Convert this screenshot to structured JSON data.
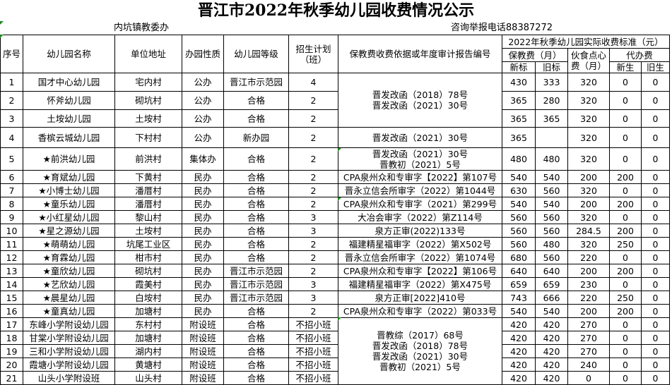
{
  "title": "晋江市2022年秋季幼儿园收费情况公示",
  "subheader": {
    "org": "内坑镇教委办",
    "hotline": "咨询举报电话88387272"
  },
  "headers": {
    "seq": "序号",
    "name": "幼儿园名称",
    "address": "单位地址",
    "nature": "办园性质",
    "grade": "幼儿园等级",
    "plan": "招生计划（班）",
    "basis": "保教费收费依据或年度审计报告编号",
    "standard": "2022年秋季幼儿园实际收费标准（元）",
    "tuition": "保教费（月）",
    "meal": "伙食点心费（月）",
    "agency": "代办费",
    "new_std": "新标",
    "old_std": "旧标",
    "new_stu": "新生",
    "old_stu": "旧生"
  },
  "basis_groups": [
    {
      "rows": [
        1,
        2,
        3
      ],
      "text": "晋发改函（2018）78号\n晋发改函（2021）30号"
    },
    {
      "rows": [
        17,
        18,
        19,
        20,
        21
      ],
      "text": "晋教综（2017）68号\n晋发改函（2018）78号\n晋发改函（2021）30号\n晋教初（2021）5号"
    }
  ],
  "rows": [
    {
      "seq": "1",
      "name": "国才中心幼儿园",
      "address": "宅内村",
      "nature": "公办",
      "grade": "晋江市示范园",
      "plan": "4",
      "basis": null,
      "new_std": "430",
      "old_std": "333",
      "meal": "320",
      "new_stu": "0",
      "old_stu": "0"
    },
    {
      "seq": "2",
      "name": "怀斧幼儿园",
      "address": "砌坑村",
      "nature": "公办",
      "grade": "合格",
      "plan": "2",
      "basis": null,
      "new_std": "365",
      "old_std": "280",
      "meal": "320",
      "new_stu": "0",
      "old_stu": "0"
    },
    {
      "seq": "3",
      "name": "土垵幼儿园",
      "address": "土垵村",
      "nature": "公办",
      "grade": "合格",
      "plan": "2",
      "basis": null,
      "new_std": "365",
      "old_std": "365",
      "meal": "320",
      "new_stu": "0",
      "old_stu": "0"
    },
    {
      "seq": "4",
      "name": "香槟云城幼儿园",
      "address": "下村村",
      "nature": "公办",
      "grade": "新办园",
      "plan": "2",
      "basis": "晋发改函（2021）30号",
      "new_std": "365",
      "old_std": "",
      "meal": "320",
      "new_stu": "0",
      "old_stu": "0"
    },
    {
      "seq": "5",
      "name": "★前洪幼儿园",
      "address": "前洪村",
      "nature": "集体办",
      "grade": "合格",
      "plan": "2",
      "basis": "晋发改函（2021）30号\n晋教初（2021）5号",
      "new_std": "480",
      "old_std": "480",
      "meal": "320",
      "new_stu": "0",
      "old_stu": "0"
    },
    {
      "seq": "6",
      "name": "★育斌幼儿园",
      "address": "下黄村",
      "nature": "民办",
      "grade": "合格",
      "plan": "2",
      "basis": "CPA泉州众和专审字【2022】第107号",
      "new_std": "540",
      "old_std": "540",
      "meal": "200",
      "new_stu": "200",
      "old_stu": "0"
    },
    {
      "seq": "7",
      "name": "★小博士幼儿园",
      "address": "潘厝村",
      "nature": "民办",
      "grade": "合格",
      "plan": "2",
      "basis": "晋永立信会所审字（2022）第1044号",
      "new_std": "630",
      "old_std": "560",
      "meal": "320",
      "new_stu": "0",
      "old_stu": "0"
    },
    {
      "seq": "8",
      "name": "★童乐幼儿园",
      "address": "潘厝村",
      "nature": "民办",
      "grade": "合格",
      "plan": "2",
      "basis": "CPA泉州众和专审字（2021）第299号",
      "new_std": "540",
      "old_std": "540",
      "meal": "200",
      "new_stu": "200",
      "old_stu": "0"
    },
    {
      "seq": "9",
      "name": "★小红星幼儿园",
      "address": "黎山村",
      "nature": "民办",
      "grade": "合格",
      "plan": "3",
      "basis": "大冶会审字（2022）第Z114号",
      "new_std": "560",
      "old_std": "560",
      "meal": "320",
      "new_stu": "0",
      "old_stu": "0"
    },
    {
      "seq": "10",
      "name": "★星之源幼儿园",
      "address": "土垵村",
      "nature": "民办",
      "grade": "合格",
      "plan": "3",
      "basis": "泉方正审(2022)133号",
      "new_std": "560",
      "old_std": "560",
      "meal": "284.5",
      "new_stu": "200",
      "old_stu": "0"
    },
    {
      "seq": "11",
      "name": "★萌萌幼儿园",
      "address": "坑尾工业区",
      "nature": "民办",
      "grade": "合格",
      "plan": "2",
      "basis": "福建精星福审字（2022）第X502号",
      "new_std": "560",
      "old_std": "480",
      "meal": "320",
      "new_stu": "250",
      "old_stu": "0"
    },
    {
      "seq": "12",
      "name": "★育霖幼儿园",
      "address": "柑市村",
      "nature": "民办",
      "grade": "合格",
      "plan": "2",
      "basis": "晋永立信会所审字（2022）第1074号",
      "new_std": "680",
      "old_std": "560",
      "meal": "220",
      "new_stu": "0",
      "old_stu": "0"
    },
    {
      "seq": "13",
      "name": "★童欣幼儿园",
      "address": "砌坑村",
      "nature": "民办",
      "grade": "晋江市示范园",
      "plan": "2",
      "basis": "CPA泉州众和专审字【2022】第106号",
      "new_std": "640",
      "old_std": "640",
      "meal": "200",
      "new_stu": "200",
      "old_stu": "0"
    },
    {
      "seq": "14",
      "name": "★艺欣幼儿园",
      "address": "霞美村",
      "nature": "民办",
      "grade": "晋江市示范园",
      "plan": "3",
      "basis": "福建精星福审字（2022）第X475号",
      "new_std": "659",
      "old_std": "659",
      "meal": "230",
      "new_stu": "0",
      "old_stu": "0"
    },
    {
      "seq": "15",
      "name": "★晨星幼儿园",
      "address": "白垵村",
      "nature": "民办",
      "grade": "晋江市示范园",
      "plan": "3",
      "basis": "泉方正审[2022]410号",
      "new_std": "743",
      "old_std": "666",
      "meal": "220",
      "new_stu": "250",
      "old_stu": "0"
    },
    {
      "seq": "16",
      "name": "★童真幼儿园",
      "address": "加塘村",
      "nature": "民办",
      "grade": "合格",
      "plan": "2",
      "basis": "CPA泉州众和专审字（2022）第033号",
      "new_std": "540",
      "old_std": "540",
      "meal": "200",
      "new_stu": "200",
      "old_stu": "0"
    },
    {
      "seq": "17",
      "name": "东峰小学附设幼儿园",
      "address": "东村村",
      "nature": "附设班",
      "grade": "合格",
      "plan": "不招小班",
      "basis": null,
      "new_std": "420",
      "old_std": "420",
      "meal": "270",
      "new_stu": "0",
      "old_stu": "0"
    },
    {
      "seq": "18",
      "name": "甘棠小学附设幼儿园",
      "address": "加塘村",
      "nature": "附设班",
      "grade": "合格",
      "plan": "不招小班",
      "basis": null,
      "new_std": "420",
      "old_std": "420",
      "meal": "270",
      "new_stu": "0",
      "old_stu": "0"
    },
    {
      "seq": "19",
      "name": "三和小学附设幼儿园",
      "address": "湖内村",
      "nature": "附设班",
      "grade": "合格",
      "plan": "不招小班",
      "basis": null,
      "new_std": "420",
      "old_std": "420",
      "meal": "270",
      "new_stu": "0",
      "old_stu": "0"
    },
    {
      "seq": "20",
      "name": "霞塘小学附设幼儿园",
      "address": "黄塘村",
      "nature": "附设班",
      "grade": "合格",
      "plan": "不招小班",
      "basis": null,
      "new_std": "420",
      "old_std": "420",
      "meal": "240",
      "new_stu": "0",
      "old_stu": "0"
    },
    {
      "seq": "21",
      "name": "山头小学附设班",
      "address": "山头村",
      "nature": "附设班",
      "grade": "合格",
      "plan": "不招小班",
      "basis": null,
      "new_std": "420",
      "old_std": "420",
      "meal": "0",
      "new_stu": "0",
      "old_stu": "0"
    }
  ]
}
